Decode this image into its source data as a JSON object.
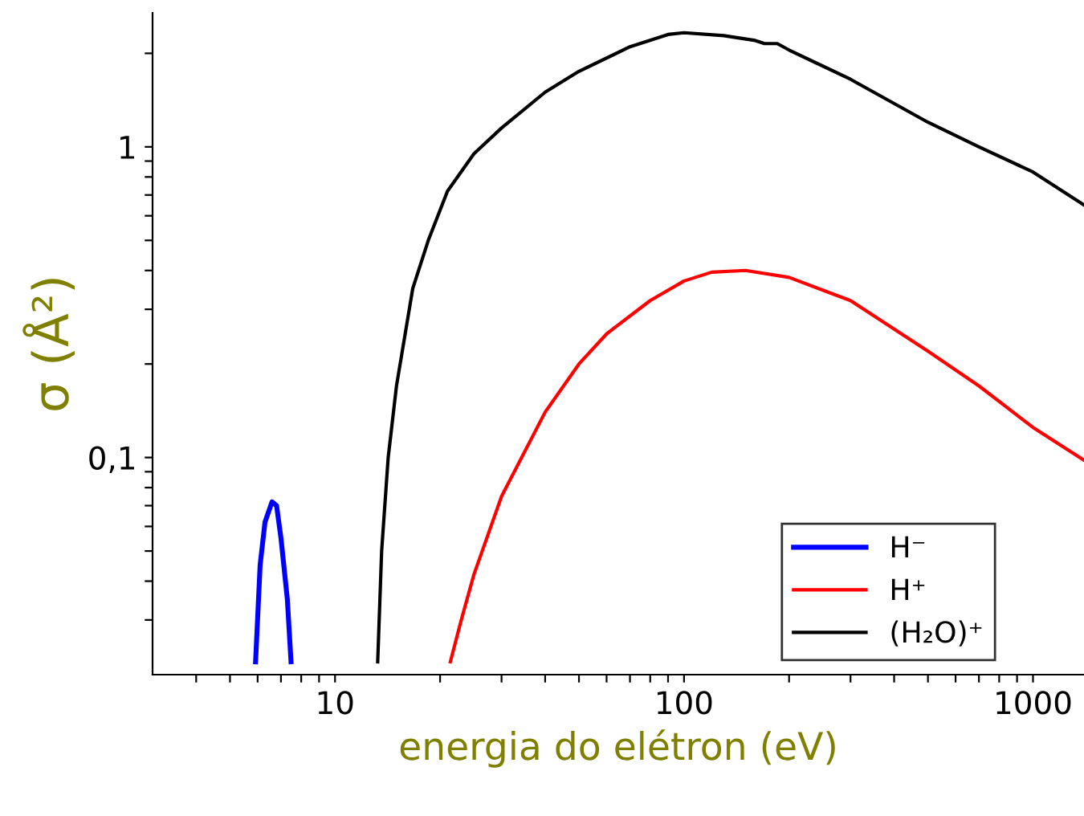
{
  "chart_data": {
    "type": "line",
    "xlabel": "energia do elétron (eV)",
    "ylabel": "σ (Å²)",
    "log": "xy",
    "grid": false,
    "legend": "bottom right",
    "marker": "none",
    "line_style": "solid",
    "xlim": [
      3,
      1400
    ],
    "ylim": [
      0.02,
      2.7
    ],
    "xticks": [
      {
        "value": 4,
        "label": null
      },
      {
        "value": 5,
        "label": null
      },
      {
        "value": 6,
        "label": null
      },
      {
        "value": 7,
        "label": null
      },
      {
        "value": 8,
        "label": null
      },
      {
        "value": 9,
        "label": null
      },
      10,
      {
        "value": 20,
        "label": null
      },
      {
        "value": 30,
        "label": null
      },
      {
        "value": 40,
        "label": null
      },
      {
        "value": 50,
        "label": null
      },
      {
        "value": 60,
        "label": null
      },
      {
        "value": 70,
        "label": null
      },
      {
        "value": 80,
        "label": null
      },
      {
        "value": 90,
        "label": null
      },
      100,
      {
        "value": 200,
        "label": null
      },
      {
        "value": 300,
        "label": null
      },
      {
        "value": 400,
        "label": null
      },
      {
        "value": 500,
        "label": null
      },
      {
        "value": 600,
        "label": null
      },
      {
        "value": 700,
        "label": null
      },
      {
        "value": 800,
        "label": null
      },
      {
        "value": 900,
        "label": null
      },
      1000
    ],
    "yticks": [
      {
        "value": 0.03,
        "label": null
      },
      {
        "value": 0.04,
        "label": null
      },
      {
        "value": 0.05,
        "label": null
      },
      {
        "value": 0.06,
        "label": null
      },
      {
        "value": 0.07,
        "label": null
      },
      {
        "value": 0.08,
        "label": null
      },
      {
        "value": 0.09,
        "label": null
      },
      {
        "value": 0.1,
        "label": "0,1"
      },
      {
        "value": 0.2,
        "label": null
      },
      {
        "value": 0.3,
        "label": null
      },
      {
        "value": 0.4,
        "label": null
      },
      {
        "value": 0.5,
        "label": null
      },
      {
        "value": 0.6,
        "label": null
      },
      {
        "value": 0.7,
        "label": null
      },
      {
        "value": 0.8,
        "label": null
      },
      {
        "value": 0.9,
        "label": null
      },
      1,
      {
        "value": 2,
        "label": null
      }
    ],
    "series": [
      {
        "name": "H⁻",
        "color": "#0000ff",
        "x": [
          5.92,
          6.1,
          6.3,
          6.6,
          6.8,
          7.0,
          7.3,
          7.48
        ],
        "values": [
          0.022,
          0.045,
          0.062,
          0.072,
          0.07,
          0.055,
          0.035,
          0.022
        ]
      },
      {
        "name": "H⁺",
        "color": "#ff0000",
        "x": [
          21.4,
          23,
          25,
          30,
          40,
          50,
          60,
          80,
          100,
          120,
          150,
          200,
          300,
          500,
          700,
          1000,
          1400
        ],
        "values": [
          0.022,
          0.03,
          0.042,
          0.075,
          0.14,
          0.2,
          0.25,
          0.32,
          0.37,
          0.395,
          0.4,
          0.38,
          0.32,
          0.22,
          0.17,
          0.125,
          0.098
        ]
      },
      {
        "name": "(H₂O)⁺",
        "color": "#000000",
        "x": [
          13.25,
          13.6,
          14.2,
          15,
          16.7,
          18.5,
          21,
          25,
          30,
          40,
          50,
          70,
          90,
          100,
          130,
          160,
          170,
          185,
          200,
          300,
          500,
          700,
          1000,
          1400
        ],
        "values": [
          0.022,
          0.05,
          0.1,
          0.17,
          0.35,
          0.5,
          0.72,
          0.95,
          1.15,
          1.5,
          1.75,
          2.1,
          2.3,
          2.33,
          2.28,
          2.2,
          2.15,
          2.15,
          2.05,
          1.65,
          1.2,
          1.0,
          0.83,
          0.65
        ]
      }
    ]
  }
}
